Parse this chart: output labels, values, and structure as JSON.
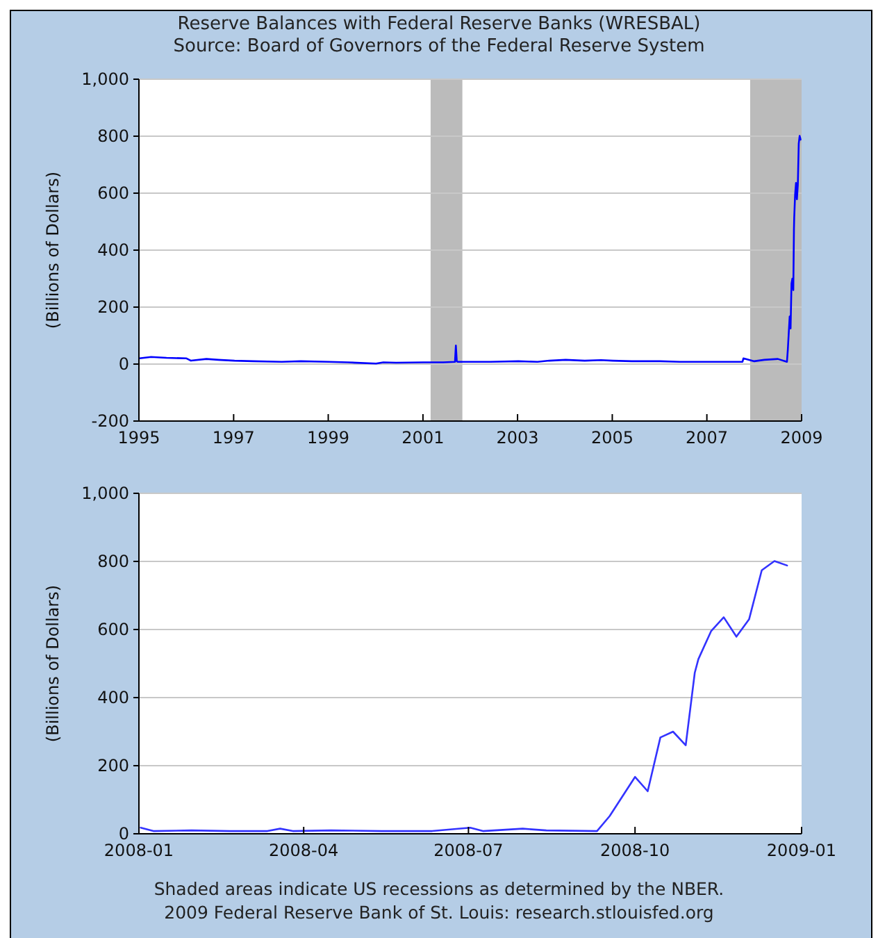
{
  "chart_data": [
    {
      "type": "line",
      "title": "Reserve Balances with Federal Reserve Banks (WRESBAL)",
      "subtitle": "Source: Board of Governors of the Federal Reserve System",
      "ylabel": "(Billions of Dollars)",
      "grid": "y",
      "xlim": [
        "1995",
        "2009"
      ],
      "xticks": [
        "1995",
        "1997",
        "1999",
        "2001",
        "2003",
        "2005",
        "2007",
        "2009"
      ],
      "ylim": [
        -200,
        1000
      ],
      "yticks": [
        -200,
        0,
        200,
        400,
        600,
        800,
        {
          "value": 1000,
          "label": "1,000"
        }
      ],
      "bands": [
        {
          "axis": "x",
          "from": "2001-03",
          "to": "2001-11",
          "color": "#bbbbbb"
        },
        {
          "axis": "x",
          "from": "2007-12",
          "to": "2009-01",
          "color": "#bbbbbb"
        }
      ],
      "series": [
        {
          "color": "#0000ff",
          "x": [
            "1995-01-04",
            "1995-04-05",
            "1995-08-02",
            "1996-01-03",
            "1996-02-07",
            "1996-06-05",
            "1996-09-04",
            "1997-01-08",
            "1997-06-04",
            "1998-01-07",
            "1998-06-03",
            "1999-01-06",
            "1999-06-02",
            "2000-01-05",
            "2000-03-01",
            "2000-06-07",
            "2001-01-03",
            "2001-06-06",
            "2001-09-05",
            "2001-09-12",
            "2001-09-19",
            "2001-09-26",
            "2002-01-02",
            "2002-06-05",
            "2003-01-08",
            "2003-06-04",
            "2003-09-03",
            "2004-01-07",
            "2004-06-02",
            "2004-10-06",
            "2005-01-05",
            "2005-06-01",
            "2006-01-04",
            "2006-06-07",
            "2007-01-03",
            "2007-06-06",
            "2007-10-03",
            "2007-10-10",
            "2008-01-02",
            "2008-03-19",
            "2008-07-02",
            "2008-09-10",
            "2008-09-17",
            "2008-10-01",
            "2008-10-08",
            "2008-10-15",
            "2008-10-22",
            "2008-10-29",
            "2008-11-03",
            "2008-11-05",
            "2008-11-12",
            "2008-11-19",
            "2008-11-26",
            "2008-12-03",
            "2008-12-10",
            "2008-12-17",
            "2008-12-24"
          ],
          "values": [
            20,
            25,
            22,
            20,
            12,
            18,
            15,
            12,
            10,
            8,
            10,
            8,
            6,
            2,
            6,
            5,
            6,
            6,
            8,
            65,
            10,
            8,
            8,
            8,
            10,
            8,
            12,
            15,
            12,
            14,
            12,
            10,
            10,
            8,
            8,
            8,
            8,
            20,
            10,
            15,
            18,
            8,
            52,
            167,
            125,
            283,
            300,
            260,
            473,
            513,
            595,
            636,
            579,
            630,
            774,
            801,
            788
          ]
        }
      ]
    },
    {
      "type": "line",
      "ylabel": "(Billions of Dollars)",
      "grid": "y",
      "xlim": [
        "2008-01",
        "2009-01"
      ],
      "xticks": [
        "2008-01",
        "2008-04",
        "2008-07",
        "2008-10",
        "2009-01"
      ],
      "ylim": [
        0,
        1000
      ],
      "yticks": [
        0,
        200,
        400,
        600,
        800,
        {
          "value": 1000,
          "label": "1,000"
        }
      ],
      "annotations": [
        "Shaded areas indicate US recessions as determined by the NBER.",
        "2009 Federal Reserve Bank of St. Louis: research.stlouisfed.org"
      ],
      "series": [
        {
          "color": "#3333ff",
          "x": [
            "2008-01-02",
            "2008-01-09",
            "2008-01-30",
            "2008-02-20",
            "2008-03-12",
            "2008-03-19",
            "2008-03-26",
            "2008-04-16",
            "2008-05-14",
            "2008-06-11",
            "2008-07-02",
            "2008-07-09",
            "2008-07-31",
            "2008-08-13",
            "2008-09-10",
            "2008-09-17",
            "2008-10-01",
            "2008-10-08",
            "2008-10-15",
            "2008-10-22",
            "2008-10-29",
            "2008-11-03",
            "2008-11-05",
            "2008-11-12",
            "2008-11-19",
            "2008-11-26",
            "2008-12-03",
            "2008-12-10",
            "2008-12-17",
            "2008-12-24"
          ],
          "values": [
            18,
            8,
            10,
            8,
            8,
            15,
            8,
            10,
            8,
            8,
            18,
            8,
            15,
            10,
            8,
            52,
            167,
            125,
            283,
            300,
            260,
            473,
            513,
            595,
            636,
            579,
            630,
            774,
            801,
            788
          ]
        }
      ]
    }
  ]
}
